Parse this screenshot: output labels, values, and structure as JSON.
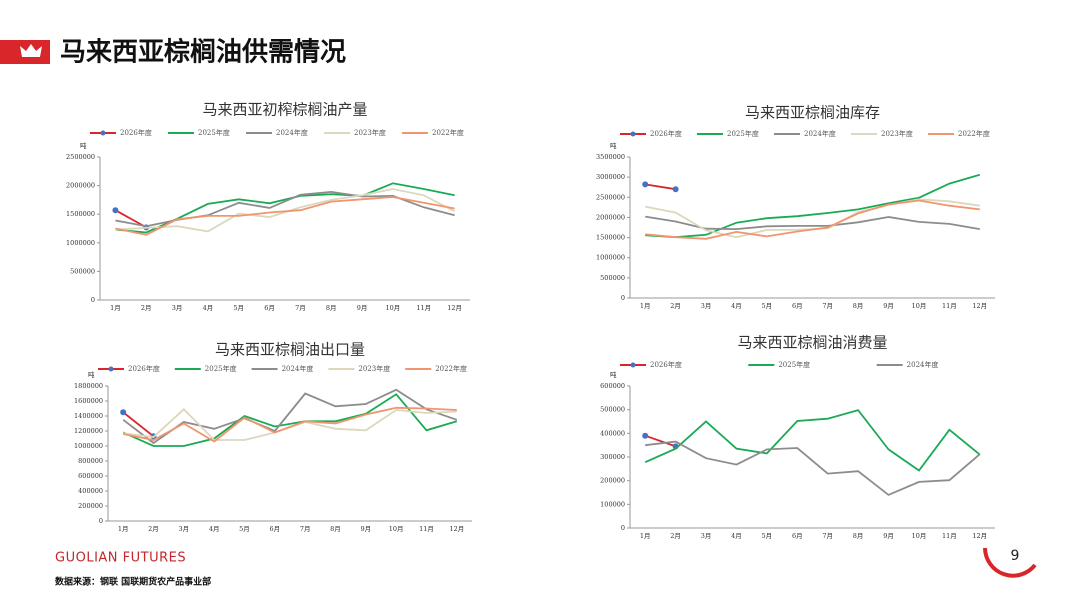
{
  "header": {
    "title": "马来西亚棕榈油供需情况"
  },
  "footer": {
    "logo": "GUOLIAN FUTURES",
    "source": "数据来源：钢联  国联期货农产品事业部",
    "page": "9"
  },
  "chart_data": [
    {
      "type": "line",
      "title": "马来西亚初榨棕榈油产量",
      "y_label": "吨",
      "categories": [
        "1月",
        "2月",
        "3月",
        "4月",
        "5月",
        "6月",
        "7月",
        "8月",
        "9月",
        "10月",
        "11月",
        "12月"
      ],
      "ylim": [
        0,
        2500000
      ],
      "yticks": [
        0,
        500000,
        1000000,
        1500000,
        2000000,
        2500000
      ],
      "series": [
        {
          "name": "2026年度",
          "color": "#d9262b",
          "marker_color": "#4472c4",
          "values": [
            1570000,
            1270000,
            null,
            null,
            null,
            null,
            null,
            null,
            null,
            null,
            null,
            null
          ]
        },
        {
          "name": "2025年度",
          "color": "#1aaa55",
          "values": [
            1230000,
            1180000,
            1420000,
            1680000,
            1760000,
            1690000,
            1820000,
            1850000,
            1820000,
            2040000,
            1940000,
            1830000
          ]
        },
        {
          "name": "2024年度",
          "color": "#8c8c8c",
          "values": [
            1390000,
            1290000,
            1400000,
            1480000,
            1700000,
            1610000,
            1840000,
            1890000,
            1810000,
            1820000,
            1620000,
            1480000
          ]
        },
        {
          "name": "2023年度",
          "color": "#dcd7bd",
          "values": [
            1230000,
            1260000,
            1290000,
            1200000,
            1510000,
            1450000,
            1620000,
            1750000,
            1830000,
            1940000,
            1830000,
            1550000
          ]
        },
        {
          "name": "2022年度",
          "color": "#f0956e",
          "values": [
            1250000,
            1140000,
            1410000,
            1470000,
            1470000,
            1530000,
            1570000,
            1720000,
            1760000,
            1800000,
            1700000,
            1600000
          ]
        }
      ]
    },
    {
      "type": "line",
      "title": "马来西亚棕榈油库存",
      "y_label": "吨",
      "categories": [
        "1月",
        "2月",
        "3月",
        "4月",
        "5月",
        "6月",
        "7月",
        "8月",
        "9月",
        "10月",
        "11月",
        "12月"
      ],
      "ylim": [
        0,
        3500000
      ],
      "yticks": [
        0,
        500000,
        1000000,
        1500000,
        2000000,
        2500000,
        3000000,
        3500000
      ],
      "series": [
        {
          "name": "2026年度",
          "color": "#d9262b",
          "marker_color": "#4472c4",
          "values": [
            2820000,
            2700000,
            null,
            null,
            null,
            null,
            null,
            null,
            null,
            null,
            null,
            null
          ]
        },
        {
          "name": "2025年度",
          "color": "#1aaa55",
          "values": [
            1560000,
            1510000,
            1570000,
            1870000,
            1980000,
            2030000,
            2110000,
            2200000,
            2350000,
            2490000,
            2840000,
            3060000
          ]
        },
        {
          "name": "2024年度",
          "color": "#8c8c8c",
          "values": [
            2020000,
            1900000,
            1720000,
            1710000,
            1780000,
            1790000,
            1790000,
            1880000,
            2010000,
            1890000,
            1840000,
            1710000
          ]
        },
        {
          "name": "2023年度",
          "color": "#dcd7bd",
          "values": [
            2270000,
            2120000,
            1680000,
            1510000,
            1690000,
            1690000,
            1730000,
            2130000,
            2310000,
            2450000,
            2400000,
            2290000
          ]
        },
        {
          "name": "2022年度",
          "color": "#f0956e",
          "values": [
            1580000,
            1510000,
            1470000,
            1640000,
            1530000,
            1650000,
            1750000,
            2100000,
            2320000,
            2420000,
            2290000,
            2200000
          ]
        }
      ]
    },
    {
      "type": "line",
      "title": "马来西亚棕榈油出口量",
      "y_label": "吨",
      "categories": [
        "1月",
        "2月",
        "3月",
        "4月",
        "5月",
        "6月",
        "7月",
        "8月",
        "9月",
        "10月",
        "11月",
        "12月"
      ],
      "ylim": [
        0,
        1800000
      ],
      "yticks": [
        0,
        200000,
        400000,
        600000,
        800000,
        1000000,
        1200000,
        1400000,
        1600000,
        1800000
      ],
      "series": [
        {
          "name": "2026年度",
          "color": "#d9262b",
          "marker_color": "#4472c4",
          "values": [
            1450000,
            1130000,
            null,
            null,
            null,
            null,
            null,
            null,
            null,
            null,
            null,
            null
          ]
        },
        {
          "name": "2025年度",
          "color": "#1aaa55",
          "values": [
            1180000,
            1000000,
            1000000,
            1100000,
            1400000,
            1260000,
            1330000,
            1330000,
            1430000,
            1690000,
            1210000,
            1330000
          ]
        },
        {
          "name": "2024年度",
          "color": "#8c8c8c",
          "values": [
            1350000,
            1040000,
            1320000,
            1230000,
            1370000,
            1200000,
            1700000,
            1530000,
            1560000,
            1750000,
            1490000,
            1350000
          ]
        },
        {
          "name": "2023年度",
          "color": "#dcd7bd",
          "values": [
            1170000,
            1120000,
            1490000,
            1080000,
            1080000,
            1180000,
            1320000,
            1230000,
            1210000,
            1480000,
            1440000,
            1460000
          ]
        },
        {
          "name": "2022年度",
          "color": "#f0956e",
          "values": [
            1160000,
            1080000,
            1300000,
            1060000,
            1380000,
            1180000,
            1330000,
            1300000,
            1420000,
            1510000,
            1500000,
            1480000
          ]
        }
      ]
    },
    {
      "type": "line",
      "title": "马来西亚棕榈油消费量",
      "y_label": "吨",
      "categories": [
        "1月",
        "2月",
        "3月",
        "4月",
        "5月",
        "6月",
        "7月",
        "8月",
        "9月",
        "10月",
        "11月",
        "12月"
      ],
      "ylim": [
        0,
        600000
      ],
      "yticks": [
        0,
        100000,
        200000,
        300000,
        400000,
        500000,
        600000
      ],
      "series": [
        {
          "name": "2026年度",
          "color": "#d9262b",
          "marker_color": "#4472c4",
          "values": [
            390000,
            345000,
            null,
            null,
            null,
            null,
            null,
            null,
            null,
            null,
            null,
            null
          ]
        },
        {
          "name": "2025年度",
          "color": "#1aaa55",
          "values": [
            278000,
            335000,
            450000,
            335000,
            315000,
            452000,
            462000,
            498000,
            332000,
            243000,
            415000,
            310000
          ]
        },
        {
          "name": "2024年度",
          "color": "#8c8c8c",
          "values": [
            350000,
            365000,
            295000,
            268000,
            332000,
            338000,
            230000,
            240000,
            140000,
            195000,
            202000,
            312000
          ]
        }
      ]
    }
  ]
}
